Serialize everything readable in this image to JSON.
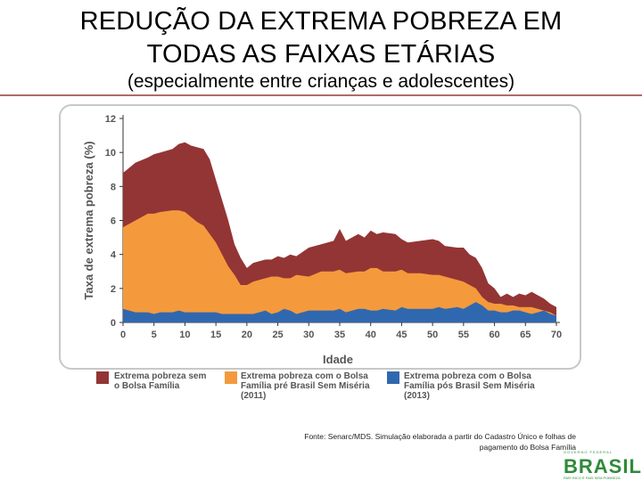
{
  "header": {
    "title_line1": "REDUÇÃO DA EXTREMA POBREZA EM",
    "title_line2": "TODAS AS FAIXAS ETÁRIAS",
    "subtitle": "(especialmente entre crianças e adolescentes)"
  },
  "chart_data": {
    "type": "area",
    "title": "",
    "xlabel": "Idade",
    "ylabel": "Taxa de extrema pobreza (%)",
    "xlim": [
      0,
      70
    ],
    "ylim": [
      0,
      12
    ],
    "x_ticks": [
      0,
      5,
      10,
      15,
      20,
      25,
      30,
      35,
      40,
      45,
      50,
      55,
      60,
      65,
      70
    ],
    "y_ticks": [
      0,
      2,
      4,
      6,
      8,
      10,
      12
    ],
    "x": [
      0,
      2,
      4,
      5,
      6,
      8,
      9,
      10,
      11,
      12,
      13,
      14,
      15,
      16,
      17,
      18,
      19,
      20,
      21,
      22,
      23,
      24,
      25,
      26,
      27,
      28,
      30,
      32,
      34,
      35,
      36,
      38,
      39,
      40,
      41,
      42,
      44,
      45,
      46,
      48,
      50,
      51,
      52,
      54,
      55,
      56,
      57,
      58,
      59,
      60,
      61,
      62,
      63,
      64,
      65,
      66,
      67,
      68,
      69,
      70
    ],
    "series": [
      {
        "name": "Extrema pobreza sem o Bolsa Família",
        "color": "#933534",
        "values": [
          8.8,
          9.4,
          9.7,
          9.9,
          10.0,
          10.2,
          10.5,
          10.6,
          10.4,
          10.3,
          10.2,
          9.6,
          8.4,
          7.2,
          6.0,
          4.6,
          3.8,
          3.2,
          3.5,
          3.6,
          3.7,
          3.7,
          3.9,
          3.8,
          4.0,
          3.9,
          4.4,
          4.6,
          4.8,
          5.5,
          4.8,
          5.2,
          5.0,
          5.4,
          5.2,
          5.3,
          5.2,
          4.9,
          4.7,
          4.8,
          4.9,
          4.8,
          4.5,
          4.4,
          4.4,
          4.0,
          3.8,
          3.2,
          2.3,
          2.0,
          1.5,
          1.7,
          1.5,
          1.7,
          1.6,
          1.8,
          1.6,
          1.4,
          1.1,
          0.9
        ]
      },
      {
        "name": "Extrema pobreza com o Bolsa Família pré Brasil Sem Miséria (2011)",
        "color": "#f49a3c",
        "values": [
          5.6,
          6.0,
          6.4,
          6.4,
          6.5,
          6.6,
          6.6,
          6.5,
          6.2,
          5.9,
          5.7,
          5.2,
          4.7,
          4.0,
          3.3,
          2.8,
          2.2,
          2.2,
          2.4,
          2.5,
          2.6,
          2.7,
          2.7,
          2.6,
          2.6,
          2.8,
          2.7,
          3.0,
          3.0,
          3.1,
          2.9,
          3.0,
          3.0,
          3.2,
          3.2,
          3.0,
          3.0,
          3.1,
          2.9,
          2.9,
          2.8,
          2.8,
          2.7,
          2.5,
          2.4,
          2.2,
          2.0,
          1.5,
          1.2,
          1.1,
          1.1,
          1.0,
          1.0,
          0.9,
          0.9,
          0.9,
          0.8,
          0.7,
          0.6,
          0.4
        ]
      },
      {
        "name": "Extrema pobreza com o Bolsa Família pós Brasil Sem Miséria (2013)",
        "color": "#3068b0",
        "values": [
          0.8,
          0.6,
          0.6,
          0.5,
          0.6,
          0.6,
          0.7,
          0.6,
          0.6,
          0.6,
          0.6,
          0.6,
          0.6,
          0.5,
          0.5,
          0.5,
          0.5,
          0.5,
          0.5,
          0.6,
          0.7,
          0.5,
          0.6,
          0.8,
          0.7,
          0.5,
          0.7,
          0.7,
          0.7,
          0.8,
          0.6,
          0.8,
          0.8,
          0.7,
          0.7,
          0.8,
          0.7,
          0.9,
          0.8,
          0.8,
          0.8,
          0.9,
          0.8,
          0.9,
          0.8,
          1.0,
          1.2,
          1.0,
          0.7,
          0.7,
          0.6,
          0.6,
          0.7,
          0.7,
          0.6,
          0.5,
          0.6,
          0.7,
          0.5,
          0.4
        ]
      }
    ],
    "legend": [
      {
        "label_line1": "Extrema pobreza sem",
        "label_line2": "o Bolsa Família",
        "label_line3": "",
        "color": "#933534"
      },
      {
        "label_line1": "Extrema pobreza com o Bolsa",
        "label_line2": "Família pré Brasil Sem Miséria",
        "label_line3": "(2011)",
        "color": "#f49a3c"
      },
      {
        "label_line1": "Extrema pobreza com o Bolsa",
        "label_line2": "Família pós Brasil Sem Miséria",
        "label_line3": "(2013)",
        "color": "#3068b0"
      }
    ],
    "legend_position": "bottom"
  },
  "footer": {
    "source_line1": "Fonte: Senarc/MDS. Simulação elaborada a partir do Cadastro Único e folhas de",
    "source_line2": "pagamento do Bolsa Família"
  },
  "logo": {
    "top": "GOVERNO FEDERAL",
    "word": "BRASIL",
    "sub": "PAÍS RICO É PAÍS SEM POBREZA"
  }
}
